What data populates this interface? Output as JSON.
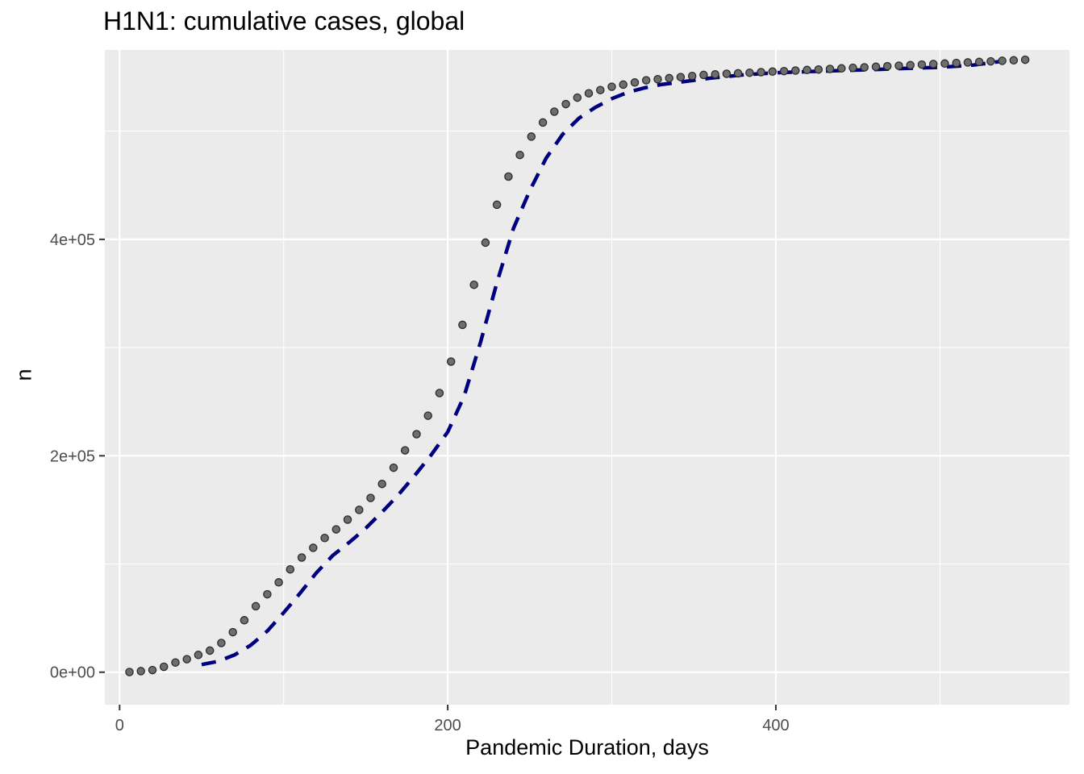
{
  "chart_data": {
    "type": "scatter",
    "title": "H1N1: cumulative cases, global",
    "xlabel": "Pandemic Duration, days",
    "ylabel": "n",
    "xlim": [
      -9,
      579
    ],
    "ylim": [
      -30000,
      575000
    ],
    "x_ticks": [
      0,
      200,
      400
    ],
    "x_tick_labels": [
      "0",
      "200",
      "400"
    ],
    "y_ticks": [
      0,
      200000,
      400000
    ],
    "y_tick_labels": [
      "0e+00",
      "2e+05",
      "4e+05"
    ],
    "grid": true,
    "legend": "none",
    "colors": {
      "panel": "#ebebeb",
      "grid": "#ffffff",
      "points_fill": "#6e6e6e",
      "points_stroke": "#2b2b2b",
      "line": "#00007f"
    },
    "series": [
      {
        "kind": "points",
        "x": [
          6,
          13,
          20,
          27,
          34,
          41,
          48,
          55,
          62,
          69,
          76,
          83,
          90,
          97,
          104,
          111,
          118,
          125,
          132,
          139,
          146,
          153,
          160,
          167,
          174,
          181,
          188,
          195,
          202,
          209,
          216,
          223,
          230,
          237,
          244,
          251,
          258,
          265,
          272,
          279,
          286,
          293,
          300,
          307,
          314,
          321,
          328,
          335,
          342,
          349,
          356,
          363,
          370,
          377,
          384,
          391,
          398,
          405,
          412,
          419,
          426,
          433,
          440,
          447,
          454,
          461,
          468,
          475,
          482,
          489,
          496,
          503,
          510,
          517,
          524,
          531,
          538,
          545,
          552
        ],
        "y": [
          200,
          1000,
          2000,
          5000,
          9000,
          12000,
          16000,
          20000,
          27000,
          37000,
          48000,
          61000,
          72000,
          83000,
          95000,
          106000,
          115000,
          124000,
          132000,
          141000,
          150000,
          161000,
          174000,
          189000,
          205000,
          220000,
          237000,
          258000,
          287000,
          321000,
          358000,
          397000,
          432000,
          458000,
          478000,
          495000,
          508000,
          518000,
          525000,
          531000,
          535000,
          538000,
          541000,
          543000,
          545000,
          547000,
          548000,
          549000,
          550000,
          551000,
          552000,
          552500,
          553000,
          553500,
          554000,
          554500,
          555000,
          555500,
          556000,
          556500,
          557000,
          557500,
          558000,
          558500,
          559000,
          559500,
          560000,
          560500,
          561000,
          561500,
          562000,
          562500,
          563000,
          563500,
          564000,
          564500,
          565000,
          565500,
          566000
        ]
      },
      {
        "kind": "dashed-line",
        "x": [
          50,
          60,
          70,
          80,
          90,
          100,
          110,
          120,
          130,
          140,
          150,
          160,
          170,
          180,
          190,
          200,
          210,
          220,
          230,
          240,
          250,
          260,
          270,
          280,
          290,
          300,
          310,
          320,
          330,
          340,
          350,
          360,
          380,
          400,
          420,
          440,
          460,
          480,
          500,
          520,
          540
        ],
        "y": [
          7000,
          10000,
          16000,
          25000,
          38000,
          55000,
          73000,
          92000,
          108000,
          120000,
          133000,
          148000,
          164000,
          182000,
          201000,
          222000,
          255000,
          305000,
          360000,
          410000,
          445000,
          475000,
          497000,
          512000,
          522000,
          530000,
          536000,
          540000,
          543000,
          545000,
          547000,
          549000,
          552000,
          554000,
          555000,
          556000,
          557000,
          558000,
          559000,
          561000,
          565000
        ]
      }
    ]
  }
}
